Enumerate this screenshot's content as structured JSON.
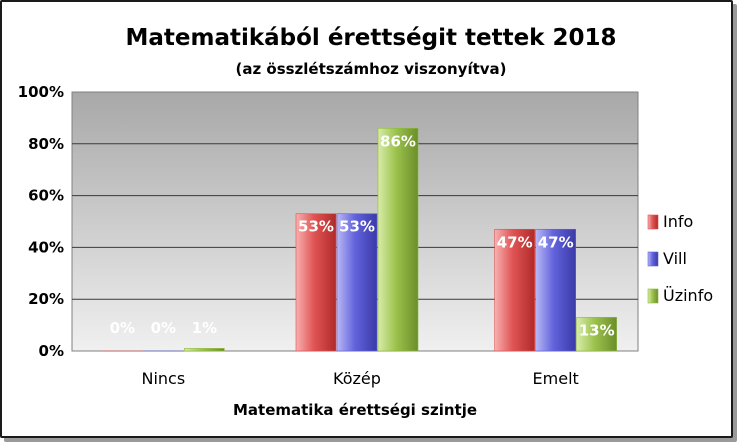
{
  "chart_data": {
    "type": "bar",
    "title": "Matematikából érettségit tettek 2018",
    "subtitle": "(az összlétszámhoz viszonyítva)",
    "xlabel": "Matematika érettségi szintje",
    "ylabel": "",
    "categories": [
      "Nincs",
      "Közép",
      "Emelt"
    ],
    "series": [
      {
        "name": "Info",
        "values": [
          0,
          53,
          47
        ],
        "labels": [
          "0%",
          "53%",
          "47%"
        ],
        "color": "#e05050"
      },
      {
        "name": "Vill",
        "values": [
          0,
          53,
          47
        ],
        "labels": [
          "0%",
          "53%",
          "47%"
        ],
        "color": "#6060dd"
      },
      {
        "name": "Üzinfo",
        "values": [
          1,
          86,
          13
        ],
        "labels": [
          "1%",
          "86%",
          "13%"
        ],
        "color": "#90b840"
      }
    ],
    "ylim": [
      0,
      100
    ],
    "yticks": [
      "0%",
      "20%",
      "40%",
      "60%",
      "80%",
      "100%"
    ],
    "grid": true,
    "legend_position": "right"
  }
}
